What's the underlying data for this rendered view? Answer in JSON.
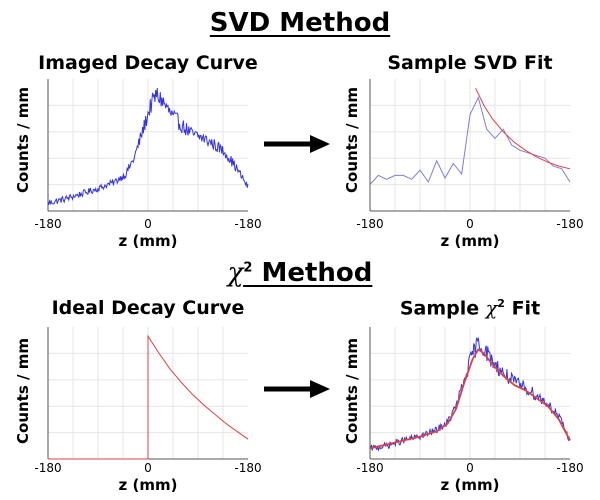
{
  "titles": {
    "svd": "SVD Method",
    "chi_symbol": "χ",
    "chi_sup": "2",
    "chi_rest": "Method"
  },
  "arrows": [
    "right-arrow",
    "right-arrow"
  ],
  "colors": {
    "blue": "#3535e0",
    "fade_blue": "#7d7ddf",
    "red": "#e04040",
    "grid": "#e6e6e6"
  },
  "chart_data": [
    {
      "id": "imaged",
      "type": "line",
      "title": "Imaged Decay Curve",
      "xlabel": "z (mm)",
      "ylabel": "Counts / mm",
      "xticks": [
        "-180",
        "0",
        "-180"
      ],
      "xlim": [
        -180,
        180
      ],
      "ylim": [
        0,
        1
      ],
      "grid": true,
      "series": [
        {
          "color": "#3535e0",
          "style": "noisy",
          "points": [
            [
              -180,
              0.06
            ],
            [
              -150,
              0.09
            ],
            [
              -120,
              0.13
            ],
            [
              -90,
              0.17
            ],
            [
              -60,
              0.22
            ],
            [
              -40,
              0.28
            ],
            [
              -25,
              0.4
            ],
            [
              -10,
              0.6
            ],
            [
              5,
              0.8
            ],
            [
              15,
              0.88
            ],
            [
              25,
              0.84
            ],
            [
              40,
              0.74
            ],
            [
              60,
              0.65
            ],
            [
              80,
              0.58
            ],
            [
              100,
              0.55
            ],
            [
              120,
              0.5
            ],
            [
              140,
              0.44
            ],
            [
              160,
              0.32
            ],
            [
              180,
              0.18
            ]
          ]
        }
      ]
    },
    {
      "id": "svdfit",
      "type": "line",
      "title": "Sample SVD Fit",
      "xlabel": "z (mm)",
      "ylabel": "Counts / mm",
      "xticks": [
        "-180",
        "0",
        "-180"
      ],
      "xlim": [
        -180,
        180
      ],
      "ylim": [
        0,
        1
      ],
      "grid": true,
      "series": [
        {
          "color": "#7d7ddf",
          "style": "plain",
          "points": [
            [
              -180,
              0.2
            ],
            [
              -165,
              0.27
            ],
            [
              -150,
              0.24
            ],
            [
              -135,
              0.27
            ],
            [
              -120,
              0.27
            ],
            [
              -105,
              0.24
            ],
            [
              -90,
              0.31
            ],
            [
              -75,
              0.22
            ],
            [
              -60,
              0.38
            ],
            [
              -45,
              0.25
            ],
            [
              -30,
              0.36
            ],
            [
              -15,
              0.28
            ],
            [
              0,
              0.73
            ],
            [
              15,
              0.86
            ],
            [
              30,
              0.62
            ],
            [
              45,
              0.55
            ],
            [
              60,
              0.62
            ],
            [
              75,
              0.5
            ],
            [
              90,
              0.46
            ],
            [
              105,
              0.44
            ],
            [
              120,
              0.42
            ],
            [
              135,
              0.4
            ],
            [
              150,
              0.34
            ],
            [
              165,
              0.32
            ],
            [
              180,
              0.22
            ]
          ]
        },
        {
          "color": "#e04040",
          "style": "plain",
          "points": [
            [
              10,
              0.93
            ],
            [
              25,
              0.8
            ],
            [
              40,
              0.7
            ],
            [
              60,
              0.6
            ],
            [
              80,
              0.52
            ],
            [
              100,
              0.46
            ],
            [
              120,
              0.41
            ],
            [
              140,
              0.37
            ],
            [
              160,
              0.34
            ],
            [
              180,
              0.32
            ]
          ]
        }
      ]
    },
    {
      "id": "ideal",
      "type": "line",
      "title": "Ideal Decay Curve",
      "xlabel": "z (mm)",
      "ylabel": "Counts / mm",
      "xticks": [
        "-180",
        "0",
        "-180"
      ],
      "xlim": [
        -180,
        180
      ],
      "ylim": [
        0,
        1
      ],
      "grid": true,
      "series": [
        {
          "color": "#e04040",
          "style": "plain",
          "points": [
            [
              -180,
              0.0
            ],
            [
              0,
              0.0
            ],
            [
              0,
              0.93
            ],
            [
              20,
              0.8
            ],
            [
              40,
              0.68
            ],
            [
              60,
              0.58
            ],
            [
              80,
              0.49
            ],
            [
              100,
              0.41
            ],
            [
              120,
              0.34
            ],
            [
              140,
              0.27
            ],
            [
              160,
              0.21
            ],
            [
              180,
              0.15
            ]
          ]
        }
      ]
    },
    {
      "id": "chifit",
      "type": "line",
      "title_prefix": "Sample",
      "title_chi": "χ",
      "title_sup": "2",
      "title_suffix": "Fit",
      "xlabel": "z (mm)",
      "ylabel": "Counts / mm",
      "xticks": [
        "-180",
        "0",
        "-180"
      ],
      "xlim": [
        -180,
        180
      ],
      "ylim": [
        0,
        1
      ],
      "grid": true,
      "series": [
        {
          "color": "#3535e0",
          "style": "noisy",
          "points": [
            [
              -180,
              0.08
            ],
            [
              -150,
              0.1
            ],
            [
              -120,
              0.14
            ],
            [
              -90,
              0.17
            ],
            [
              -60,
              0.22
            ],
            [
              -40,
              0.28
            ],
            [
              -25,
              0.4
            ],
            [
              -10,
              0.6
            ],
            [
              5,
              0.8
            ],
            [
              15,
              0.88
            ],
            [
              25,
              0.84
            ],
            [
              40,
              0.74
            ],
            [
              60,
              0.65
            ],
            [
              80,
              0.58
            ],
            [
              100,
              0.54
            ],
            [
              120,
              0.48
            ],
            [
              140,
              0.42
            ],
            [
              160,
              0.32
            ],
            [
              180,
              0.14
            ]
          ]
        },
        {
          "color": "#e04040",
          "style": "plain",
          "points": [
            [
              -180,
              0.08
            ],
            [
              -150,
              0.11
            ],
            [
              -120,
              0.14
            ],
            [
              -90,
              0.17
            ],
            [
              -60,
              0.21
            ],
            [
              -40,
              0.27
            ],
            [
              -25,
              0.38
            ],
            [
              -10,
              0.58
            ],
            [
              5,
              0.76
            ],
            [
              15,
              0.83
            ],
            [
              25,
              0.8
            ],
            [
              40,
              0.72
            ],
            [
              60,
              0.63
            ],
            [
              80,
              0.56
            ],
            [
              100,
              0.52
            ],
            [
              120,
              0.46
            ],
            [
              140,
              0.4
            ],
            [
              160,
              0.3
            ],
            [
              180,
              0.14
            ]
          ]
        }
      ]
    }
  ]
}
